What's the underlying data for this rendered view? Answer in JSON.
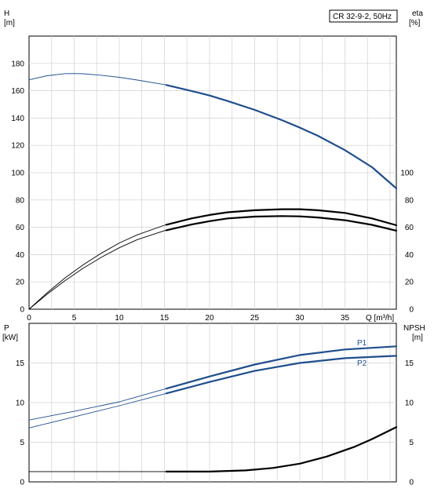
{
  "title_box": "CR 32-9-2, 50Hz",
  "chart_data": [
    {
      "type": "line",
      "name_left_axis": "H",
      "ylabel_left": "H",
      "ylabel_left_unit": "[m]",
      "ylabel_right": "eta",
      "ylabel_right_unit": "[%]",
      "xlabel": "Q [m³/h]",
      "xlim": [
        0,
        40.7
      ],
      "ylim": [
        0,
        200
      ],
      "x_ticks": [
        0,
        5,
        10,
        15,
        20,
        25,
        30,
        35
      ],
      "y_ticks_left": [
        0,
        20,
        40,
        60,
        80,
        100,
        120,
        140,
        160,
        180
      ],
      "y_ticks_right": [
        0,
        20,
        40,
        60,
        80,
        100
      ],
      "grid": true,
      "series": [
        {
          "axis": "left",
          "color": "#1f4e8c",
          "thin_until_x": 15.2,
          "x": [
            0,
            2,
            4,
            5,
            6,
            8,
            10,
            12,
            15,
            18,
            20,
            22,
            25,
            28,
            30,
            32,
            35,
            38,
            40.7
          ],
          "y": [
            168,
            171,
            172.5,
            172.6,
            172.4,
            171.3,
            169.8,
            167.8,
            164.5,
            159.8,
            156.5,
            152.5,
            146,
            138.5,
            133,
            127,
            116.5,
            104,
            88.5
          ]
        },
        {
          "axis": "right",
          "color": "#000000",
          "thin_until_x": 15.2,
          "x": [
            0,
            2,
            4,
            6,
            8,
            10,
            12,
            15,
            18,
            20,
            22,
            25,
            28,
            30,
            32,
            35,
            38,
            40.7
          ],
          "y": [
            0,
            11,
            21,
            30,
            38,
            45,
            51,
            57.5,
            62,
            64.5,
            66.5,
            67.8,
            68.2,
            68,
            67.2,
            65.2,
            61.8,
            57.5
          ]
        },
        {
          "axis": "right",
          "color": "#000000",
          "thin_until_x": 15.2,
          "x": [
            0,
            2,
            4,
            6,
            8,
            10,
            12,
            15,
            18,
            20,
            22,
            25,
            28,
            30,
            32,
            35,
            38,
            40.7
          ],
          "y": [
            0,
            12,
            23,
            32.5,
            41,
            48.5,
            54.5,
            61.5,
            66.5,
            69,
            71,
            72.5,
            73.2,
            73.2,
            72.5,
            70.5,
            66.5,
            61.5
          ]
        }
      ]
    },
    {
      "type": "line",
      "ylabel_left": "P",
      "ylabel_left_unit": "[kW]",
      "ylabel_right": "NPSH",
      "ylabel_right_unit": "[m]",
      "xlim": [
        0,
        40.7
      ],
      "ylim": [
        0,
        20
      ],
      "y_ticks_left": [
        0,
        5,
        10,
        15
      ],
      "y_ticks_right": [
        0,
        5,
        10,
        15
      ],
      "grid": true,
      "series": [
        {
          "name": "P1",
          "axis": "left",
          "color": "#1f4e8c",
          "thin_until_x": 15.2,
          "x": [
            0,
            5,
            10,
            15,
            20,
            25,
            30,
            35,
            40.7
          ],
          "y": [
            7.8,
            8.9,
            10.1,
            11.7,
            13.3,
            14.8,
            16,
            16.7,
            17.1
          ]
        },
        {
          "name": "P2",
          "axis": "left",
          "color": "#1f4e8c",
          "thin_until_x": 15.2,
          "x": [
            0,
            5,
            10,
            15,
            20,
            25,
            30,
            35,
            40.7
          ],
          "y": [
            6.8,
            8.2,
            9.6,
            11.1,
            12.6,
            14,
            15,
            15.6,
            15.9
          ]
        },
        {
          "axis": "right",
          "color": "#000000",
          "thin_until_x": 15.2,
          "x": [
            0,
            5,
            10,
            15,
            20,
            24,
            27,
            30,
            33,
            36,
            38,
            40.7
          ],
          "y": [
            1.3,
            1.3,
            1.3,
            1.3,
            1.3,
            1.45,
            1.75,
            2.3,
            3.2,
            4.4,
            5.4,
            6.9
          ]
        }
      ]
    }
  ]
}
